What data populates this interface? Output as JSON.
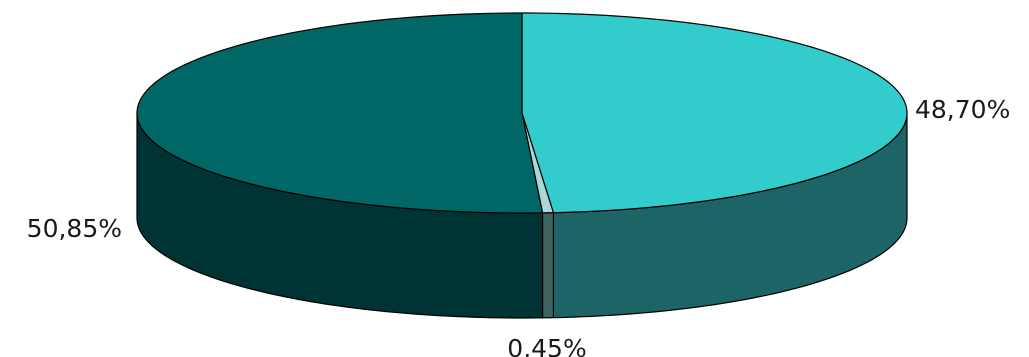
{
  "chart_data": {
    "type": "pie",
    "style": "3d",
    "title": "",
    "slices": [
      {
        "value": 48.7,
        "label": "48,70%",
        "top_color": "#33CCCC",
        "side_color": "#1D6466"
      },
      {
        "value": 0.45,
        "label": "0,45%",
        "top_color": "#A8D8D8",
        "side_color": "#3F6460"
      },
      {
        "value": 50.85,
        "label": "50,85%",
        "top_color": "#006666",
        "side_color": "#003333"
      }
    ],
    "start_angle": "top, clockwise",
    "legend": "none",
    "data_labels": "outside"
  }
}
